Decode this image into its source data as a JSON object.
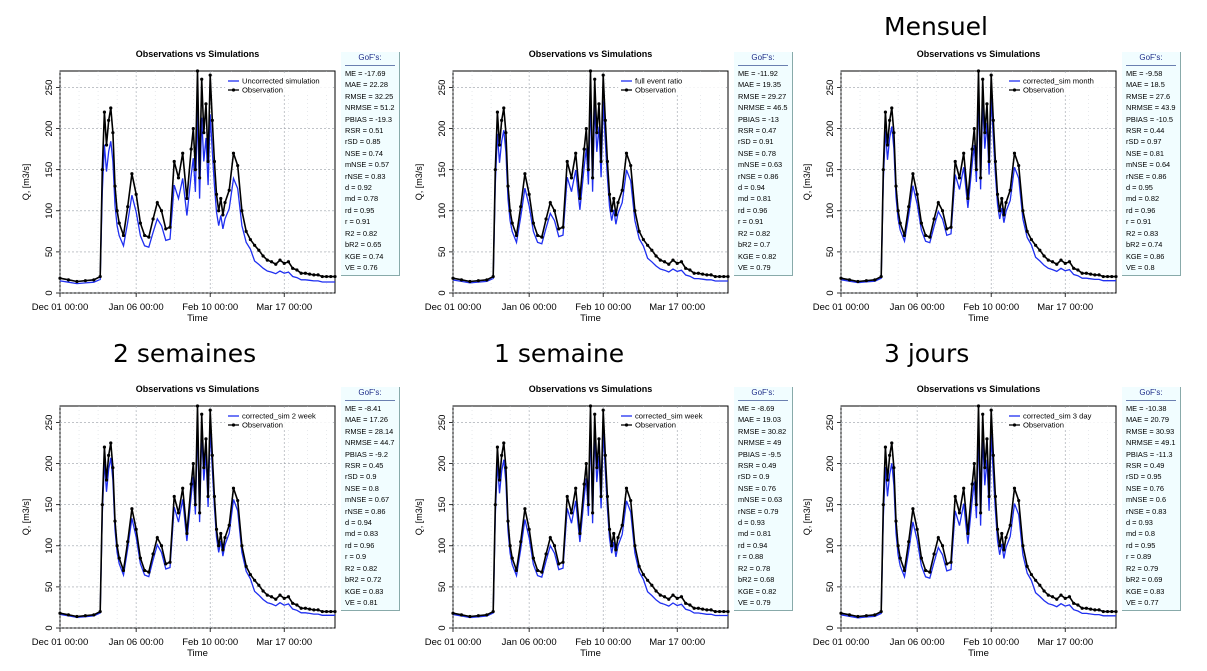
{
  "headings": {
    "p3": "Mensuel",
    "p4": "2 semaines",
    "p5": "1 semaine",
    "p6": "3 jours"
  },
  "colors": {
    "simulation": "#1f2ff0",
    "observation": "#000000",
    "grid": "#9aa0a8",
    "gof_bg": "#f1fdff"
  },
  "chart_data": [
    {
      "type": "line",
      "title": "Observations vs Simulations",
      "xlabel": "Time",
      "ylabel": "Q, [m3/s]",
      "xticks": [
        "Dec 01 00:00",
        "Jan 06 00:00",
        "Feb 10 00:00",
        "Mar 17 00:00"
      ],
      "yticks": [
        0,
        50,
        100,
        150,
        200,
        250
      ],
      "ylim": [
        0,
        270
      ],
      "legend": [
        "Uncorrected simulation",
        "Observation"
      ],
      "legend_position": "top-right",
      "gof_title": "GoF's:",
      "gof": [
        "ME = -17.69",
        "MAE = 22.28",
        "RMSE = 32.25",
        "NRMSE = 51.2",
        "PBIAS = -19.3",
        "RSR = 0.51",
        "rSD = 0.85",
        "NSE = 0.74",
        "mNSE = 0.57",
        "rNSE = 0.83",
        "d = 0.92",
        "md = 0.78",
        "rd = 0.95",
        "r = 0.91",
        "R2 = 0.82",
        "bR2 = 0.65",
        "KGE = 0.74",
        "VE = 0.76"
      ],
      "sim_ratio": 0.82
    },
    {
      "type": "line",
      "title": "Observations vs Simulations",
      "xlabel": "Time",
      "ylabel": "Q, [m3/s]",
      "xticks": [
        "Dec 01 00:00",
        "Jan 06 00:00",
        "Feb 10 00:00",
        "Mar 17 00:00"
      ],
      "yticks": [
        0,
        50,
        100,
        150,
        200,
        250
      ],
      "ylim": [
        0,
        270
      ],
      "legend": [
        "full event ratio",
        "Observation"
      ],
      "legend_position": "top-right",
      "gof_title": "GoF's:",
      "gof": [
        "ME = -11.92",
        "MAE = 19.35",
        "RMSE = 29.27",
        "NRMSE = 46.5",
        "PBIAS = -13",
        "RSR = 0.47",
        "rSD = 0.91",
        "NSE = 0.78",
        "mNSE = 0.63",
        "rNSE = 0.86",
        "d = 0.94",
        "md = 0.81",
        "rd = 0.96",
        "r = 0.91",
        "R2 = 0.82",
        "bR2 = 0.7",
        "KGE = 0.82",
        "VE = 0.79"
      ],
      "sim_ratio": 0.88
    },
    {
      "type": "line",
      "title": "Observations vs Simulations",
      "xlabel": "Time",
      "ylabel": "Q, [m3/s]",
      "xticks": [
        "Dec 01 00:00",
        "Jan 06 00:00",
        "Feb 10 00:00",
        "Mar 17 00:00"
      ],
      "yticks": [
        0,
        50,
        100,
        150,
        200,
        250
      ],
      "ylim": [
        0,
        270
      ],
      "legend": [
        "corrected_sim month",
        "Observation"
      ],
      "legend_position": "top-right",
      "gof_title": "GoF's:",
      "gof": [
        "ME = -9.58",
        "MAE = 18.5",
        "RMSE = 27.6",
        "NRMSE = 43.9",
        "PBIAS = -10.5",
        "RSR = 0.44",
        "rSD = 0.97",
        "NSE = 0.81",
        "mNSE = 0.64",
        "rNSE = 0.86",
        "d = 0.95",
        "md = 0.82",
        "rd = 0.96",
        "r = 0.91",
        "R2 = 0.83",
        "bR2 = 0.74",
        "KGE = 0.86",
        "VE = 0.8"
      ],
      "sim_ratio": 0.9
    },
    {
      "type": "line",
      "title": "Observations vs Simulations",
      "xlabel": "Time",
      "ylabel": "Q, [m3/s]",
      "xticks": [
        "Dec 01 00:00",
        "Jan 06 00:00",
        "Feb 10 00:00",
        "Mar 17 00:00"
      ],
      "yticks": [
        0,
        50,
        100,
        150,
        200,
        250
      ],
      "ylim": [
        0,
        270
      ],
      "legend": [
        "corrected_sim 2 week",
        "Observation"
      ],
      "legend_position": "top-right",
      "gof_title": "GoF's:",
      "gof": [
        "ME = -8.41",
        "MAE = 17.26",
        "RMSE = 28.14",
        "NRMSE = 44.7",
        "PBIAS = -9.2",
        "RSR = 0.45",
        "rSD = 0.9",
        "NSE = 0.8",
        "mNSE = 0.67",
        "rNSE = 0.86",
        "d = 0.94",
        "md = 0.83",
        "rd = 0.96",
        "r = 0.9",
        "R2 = 0.82",
        "bR2 = 0.72",
        "KGE = 0.83",
        "VE = 0.81"
      ],
      "sim_ratio": 0.92
    },
    {
      "type": "line",
      "title": "Observations vs Simulations",
      "xlabel": "Time",
      "ylabel": "Q, [m3/s]",
      "xticks": [
        "Dec 01 00:00",
        "Jan 06 00:00",
        "Feb 10 00:00",
        "Mar 17 00:00"
      ],
      "yticks": [
        0,
        50,
        100,
        150,
        200,
        250
      ],
      "ylim": [
        0,
        270
      ],
      "legend": [
        "corrected_sim week",
        "Observation"
      ],
      "legend_position": "top-right",
      "gof_title": "GoF's:",
      "gof": [
        "ME = -8.69",
        "MAE = 19.03",
        "RMSE = 30.82",
        "NRMSE = 49",
        "PBIAS = -9.5",
        "RSR = 0.49",
        "rSD = 0.9",
        "NSE = 0.76",
        "mNSE = 0.63",
        "rNSE = 0.79",
        "d = 0.93",
        "md = 0.81",
        "rd = 0.94",
        "r = 0.88",
        "R2 = 0.78",
        "bR2 = 0.68",
        "KGE = 0.82",
        "VE = 0.79"
      ],
      "sim_ratio": 0.91
    },
    {
      "type": "line",
      "title": "Observations vs Simulations",
      "xlabel": "Time",
      "ylabel": "Q, [m3/s]",
      "xticks": [
        "Dec 01 00:00",
        "Jan 06 00:00",
        "Feb 10 00:00",
        "Mar 17 00:00"
      ],
      "yticks": [
        0,
        50,
        100,
        150,
        200,
        250
      ],
      "ylim": [
        0,
        270
      ],
      "legend": [
        "corrected_sim 3 day",
        "Observation"
      ],
      "legend_position": "top-right",
      "gof_title": "GoF's:",
      "gof": [
        "ME = -10.38",
        "MAE = 20.79",
        "RMSE = 30.93",
        "NRMSE = 49.1",
        "PBIAS = -11.3",
        "RSR = 0.49",
        "rSD = 0.95",
        "NSE = 0.76",
        "mNSE = 0.6",
        "rNSE = 0.83",
        "d = 0.93",
        "md = 0.8",
        "rd = 0.95",
        "r = 0.89",
        "R2 = 0.79",
        "bR2 = 0.69",
        "KGE = 0.83",
        "VE = 0.77"
      ],
      "sim_ratio": 0.89
    }
  ],
  "observation_series": {
    "x_days": [
      0,
      4,
      8,
      12,
      16,
      19,
      20,
      21,
      22,
      23,
      24,
      25,
      26,
      27,
      28,
      30,
      32,
      34,
      36,
      38,
      40,
      42,
      44,
      46,
      48,
      50,
      52,
      54,
      56,
      58,
      60,
      62,
      63,
      64,
      65,
      66,
      67,
      68,
      69,
      70,
      71,
      72,
      73,
      74,
      75,
      76,
      77,
      78,
      80,
      82,
      84,
      86,
      88,
      90,
      92,
      94,
      96,
      98,
      100,
      102,
      104,
      106,
      108,
      110,
      112,
      114,
      116,
      118,
      120,
      122,
      124,
      126,
      128,
      130
    ],
    "q": [
      18,
      16,
      14,
      15,
      16,
      20,
      150,
      220,
      180,
      210,
      225,
      195,
      130,
      100,
      85,
      70,
      105,
      145,
      120,
      85,
      70,
      68,
      90,
      110,
      100,
      78,
      80,
      160,
      140,
      170,
      115,
      175,
      200,
      150,
      270,
      140,
      260,
      195,
      230,
      160,
      265,
      210,
      160,
      120,
      100,
      115,
      95,
      110,
      125,
      170,
      155,
      100,
      75,
      65,
      58,
      52,
      45,
      40,
      38,
      35,
      40,
      36,
      38,
      30,
      28,
      24,
      24,
      23,
      22,
      22,
      20,
      20,
      20,
      20
    ]
  }
}
